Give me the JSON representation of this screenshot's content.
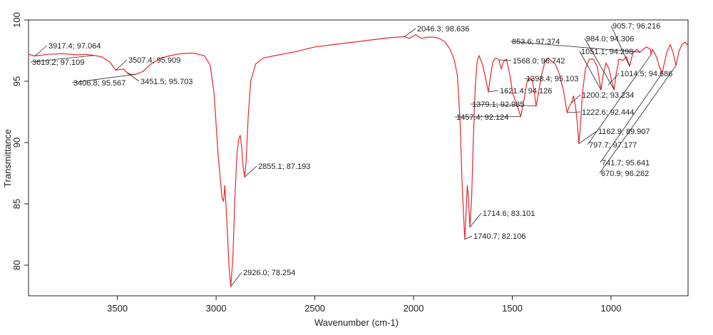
{
  "chart_data": {
    "type": "line",
    "title": "",
    "xlabel": "Wavenumber (cm-1)",
    "ylabel": "Transmittance",
    "xlim": [
      3950,
      610
    ],
    "ylim": [
      77.5,
      100
    ],
    "x_reversed": true,
    "grid": false,
    "x_ticks": [
      {
        "value": 3500,
        "label": "3500"
      },
      {
        "value": 3000,
        "label": "3000"
      },
      {
        "value": 2500,
        "label": "2500"
      },
      {
        "value": 2000,
        "label": "2000"
      },
      {
        "value": 1500,
        "label": "1500"
      },
      {
        "value": 1000,
        "label": "1000"
      }
    ],
    "y_ticks": [
      {
        "value": 80,
        "label": "80"
      },
      {
        "value": 85,
        "label": "85"
      },
      {
        "value": 90,
        "label": "90"
      },
      {
        "value": 95,
        "label": "95"
      },
      {
        "value": 100,
        "label": "100"
      }
    ],
    "series": [
      {
        "color": "#e8262b",
        "points": [
          [
            3950,
            97.2
          ],
          [
            3917.4,
            97.064
          ],
          [
            3850,
            97.2
          ],
          [
            3780,
            97.25
          ],
          [
            3700,
            97.15
          ],
          [
            3660,
            97.2
          ],
          [
            3619.2,
            97.109
          ],
          [
            3580,
            97.0
          ],
          [
            3540,
            96.6
          ],
          [
            3507.4,
            95.909
          ],
          [
            3470,
            96.0
          ],
          [
            3451.5,
            95.703
          ],
          [
            3430,
            95.55
          ],
          [
            3406.8,
            95.567
          ],
          [
            3370,
            95.8
          ],
          [
            3330,
            96.4
          ],
          [
            3280,
            96.9
          ],
          [
            3230,
            97.1
          ],
          [
            3180,
            97.25
          ],
          [
            3120,
            97.3
          ],
          [
            3060,
            97.1
          ],
          [
            3030,
            96.3
          ],
          [
            3010,
            94.0
          ],
          [
            2990,
            89.0
          ],
          [
            2970,
            85.5
          ],
          [
            2962,
            85.2
          ],
          [
            2956,
            86.5
          ],
          [
            2945,
            83.5
          ],
          [
            2935,
            80.0
          ],
          [
            2926.0,
            78.254
          ],
          [
            2915,
            80.5
          ],
          [
            2905,
            85.5
          ],
          [
            2895,
            89.0
          ],
          [
            2885,
            90.3
          ],
          [
            2878,
            90.6
          ],
          [
            2870,
            89.5
          ],
          [
            2863,
            88.0
          ],
          [
            2855.1,
            87.193
          ],
          [
            2848,
            88.5
          ],
          [
            2838,
            92.0
          ],
          [
            2825,
            95.0
          ],
          [
            2800,
            96.4
          ],
          [
            2760,
            96.9
          ],
          [
            2700,
            97.1
          ],
          [
            2600,
            97.4
          ],
          [
            2500,
            97.8
          ],
          [
            2400,
            98.0
          ],
          [
            2300,
            98.2
          ],
          [
            2200,
            98.4
          ],
          [
            2120,
            98.55
          ],
          [
            2080,
            98.6
          ],
          [
            2046.3,
            98.636
          ],
          [
            2020,
            98.5
          ],
          [
            1990,
            98.8
          ],
          [
            1960,
            98.5
          ],
          [
            1930,
            98.6
          ],
          [
            1900,
            98.6
          ],
          [
            1870,
            98.5
          ],
          [
            1840,
            98.2
          ],
          [
            1815,
            97.6
          ],
          [
            1795,
            96.8
          ],
          [
            1778,
            95.5
          ],
          [
            1765,
            92.0
          ],
          [
            1755,
            87.0
          ],
          [
            1748,
            84.5
          ],
          [
            1740.7,
            82.106
          ],
          [
            1735,
            84.0
          ],
          [
            1728,
            86.5
          ],
          [
            1722,
            85.5
          ],
          [
            1714.6,
            83.101
          ],
          [
            1706,
            85.5
          ],
          [
            1698,
            90.0
          ],
          [
            1688,
            94.5
          ],
          [
            1678,
            96.6
          ],
          [
            1668,
            97.1
          ],
          [
            1650,
            96.3
          ],
          [
            1636,
            95.3
          ],
          [
            1621.4,
            94.126
          ],
          [
            1610,
            95.5
          ],
          [
            1598,
            96.6
          ],
          [
            1583,
            96.9
          ],
          [
            1568.0,
            96.742
          ],
          [
            1556,
            96.0
          ],
          [
            1545,
            96.6
          ],
          [
            1530,
            96.8
          ],
          [
            1512,
            95.5
          ],
          [
            1498,
            94.0
          ],
          [
            1475,
            93.0
          ],
          [
            1457.4,
            92.124
          ],
          [
            1440,
            93.5
          ],
          [
            1425,
            95.0
          ],
          [
            1410,
            95.3
          ],
          [
            1398.4,
            95.103
          ],
          [
            1388,
            94.0
          ],
          [
            1379.1,
            92.985
          ],
          [
            1368,
            94.0
          ],
          [
            1352,
            95.5
          ],
          [
            1335,
            96.6
          ],
          [
            1318,
            96.9
          ],
          [
            1298,
            96.6
          ],
          [
            1282,
            96.4
          ],
          [
            1262,
            95.6
          ],
          [
            1240,
            94.2
          ],
          [
            1222.6,
            92.444
          ],
          [
            1210,
            93.0
          ],
          [
            1200.2,
            93.234
          ],
          [
            1190,
            93.8
          ],
          [
            1180,
            93.0
          ],
          [
            1170,
            91.5
          ],
          [
            1162.9,
            89.907
          ],
          [
            1154,
            91.5
          ],
          [
            1145,
            94.0
          ],
          [
            1130,
            96.0
          ],
          [
            1110,
            96.8
          ],
          [
            1090,
            96.8
          ],
          [
            1070,
            96.2
          ],
          [
            1051.1,
            94.298
          ],
          [
            1040,
            95.5
          ],
          [
            1025,
            96.5
          ],
          [
            1010,
            96.0
          ],
          [
            997,
            95.0
          ],
          [
            984.0,
            94.306
          ],
          [
            975,
            95.5
          ],
          [
            960,
            96.8
          ],
          [
            940,
            96.7
          ],
          [
            922,
            97.0
          ],
          [
            905.7,
            96.216
          ],
          [
            890,
            97.3
          ],
          [
            870,
            97.6
          ],
          [
            853.6,
            97.374
          ],
          [
            838,
            97.6
          ],
          [
            820,
            97.8
          ],
          [
            800,
            97.6
          ],
          [
            797.7,
            97.177
          ],
          [
            790,
            97.6
          ],
          [
            770,
            97.0
          ],
          [
            755,
            96.2
          ],
          [
            741.7,
            95.641
          ],
          [
            730,
            96.5
          ],
          [
            715,
            97.5
          ],
          [
            700,
            98.0
          ],
          [
            685,
            97.3
          ],
          [
            670.9,
            96.282
          ],
          [
            655,
            97.5
          ],
          [
            640,
            98.0
          ],
          [
            625,
            98.2
          ],
          [
            610,
            97.9
          ]
        ]
      }
    ],
    "annotations": [
      {
        "x": 3917.4,
        "y": 97.064,
        "text": "3917.4; 97.064"
      },
      {
        "x": 3619.2,
        "y": 97.109,
        "text": "3619.2; 97.109"
      },
      {
        "x": 3507.4,
        "y": 95.909,
        "text": "3507.4; 95.909"
      },
      {
        "x": 3406.8,
        "y": 95.567,
        "text": "3406.8; 95.567"
      },
      {
        "x": 3451.5,
        "y": 95.703,
        "text": "3451.5; 95.703"
      },
      {
        "x": 2855.1,
        "y": 87.193,
        "text": "2855.1; 87.193"
      },
      {
        "x": 2926.0,
        "y": 78.254,
        "text": "2926.0; 78.254"
      },
      {
        "x": 2046.3,
        "y": 98.636,
        "text": "2046.3; 98.636"
      },
      {
        "x": 1714.6,
        "y": 83.101,
        "text": "1714.6; 83.101"
      },
      {
        "x": 1740.7,
        "y": 82.106,
        "text": "1740.7; 82.106"
      },
      {
        "x": 1621.4,
        "y": 94.126,
        "text": "1621.4; 94.126"
      },
      {
        "x": 1568.0,
        "y": 96.742,
        "text": "1568.0; 96.742"
      },
      {
        "x": 1398.4,
        "y": 95.103,
        "text": "1398.4; 95.103"
      },
      {
        "x": 1379.1,
        "y": 92.985,
        "text": "1379.1; 92.985"
      },
      {
        "x": 1457.4,
        "y": 92.124,
        "text": "1457.4; 92.124"
      },
      {
        "x": 1222.6,
        "y": 92.444,
        "text": "1222.6; 92.444"
      },
      {
        "x": 1200.2,
        "y": 93.234,
        "text": "1200.2; 93.234"
      },
      {
        "x": 1162.9,
        "y": 89.907,
        "text": "1162.9; 89.907"
      },
      {
        "x": 1051.1,
        "y": 94.298,
        "text": "1051.1; 94.298"
      },
      {
        "x": 1014.5,
        "y": 94.686,
        "text": "1014.5; 94.686"
      },
      {
        "x": 984.0,
        "y": 94.306,
        "text": "984.0; 94.306"
      },
      {
        "x": 905.7,
        "y": 96.216,
        "text": "905.7; 96.216"
      },
      {
        "x": 853.6,
        "y": 97.374,
        "text": "853.6; 97.374"
      },
      {
        "x": 797.7,
        "y": 97.177,
        "text": "797.7; 97.177"
      },
      {
        "x": 741.7,
        "y": 95.641,
        "text": "741.7; 95.641"
      },
      {
        "x": 670.9,
        "y": 96.282,
        "text": "670.9; 96.282"
      }
    ]
  }
}
